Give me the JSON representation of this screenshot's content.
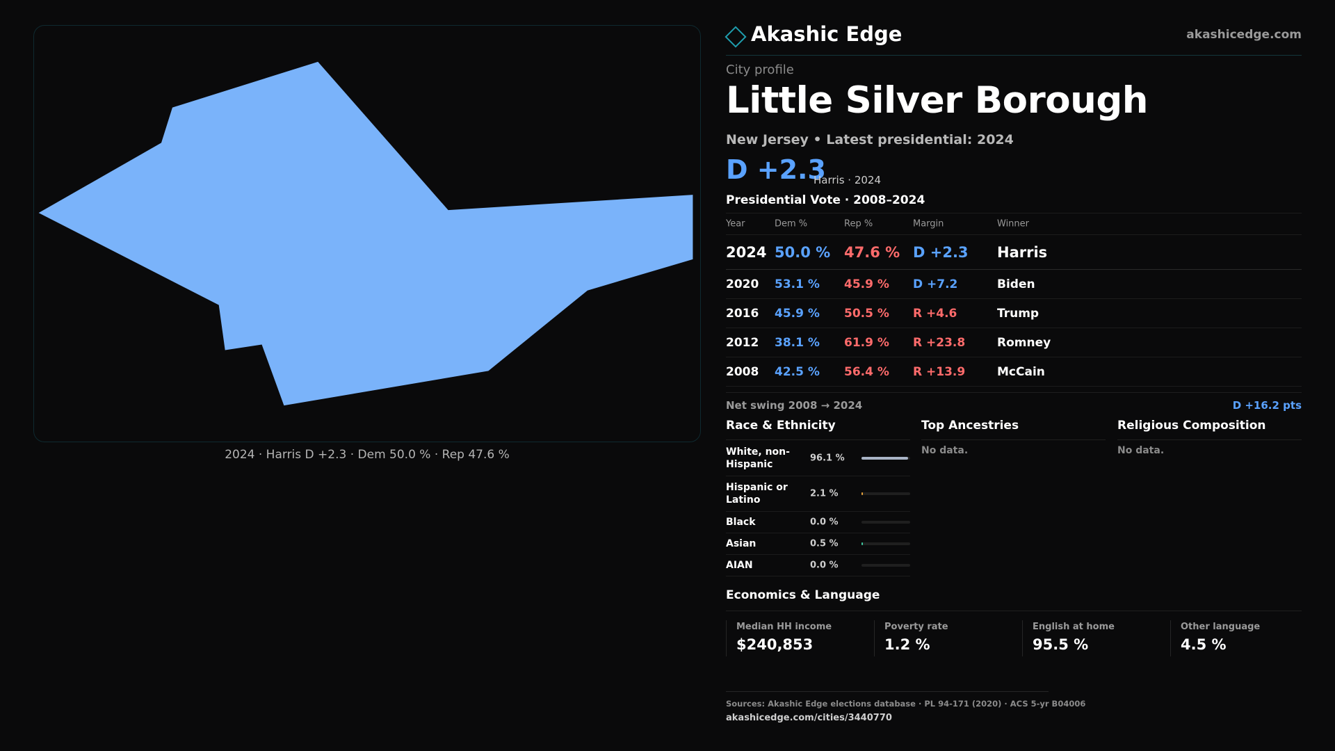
{
  "map": {
    "fill_color": "#7ab3fa",
    "caption": "2024 · Harris D +2.3 · Dem 50.0 % · Rep 47.6 %"
  },
  "brand": {
    "icon": "diamond-outline-icon",
    "name": "Akashic Edge",
    "url": "akashicedge.com"
  },
  "city": {
    "kicker": "City profile",
    "title": "Little Silver Borough",
    "subtitle": "New Jersey • Latest presidential: 2024",
    "margin": "D +2.3",
    "winner_note": "Harris · 2024"
  },
  "vote": {
    "title": "Presidential Vote · 2008–2024",
    "columns": {
      "year": "Year",
      "dem": "Dem %",
      "rep": "Rep %",
      "margin": "Margin",
      "winner": "Winner"
    },
    "rows": [
      {
        "year": "2024",
        "dem": "50.0 %",
        "rep": "47.6 %",
        "margin": "D +2.3",
        "winner": "Harris"
      },
      {
        "year": "2020",
        "dem": "53.1 %",
        "rep": "45.9 %",
        "margin": "D +7.2",
        "winner": "Biden"
      },
      {
        "year": "2016",
        "dem": "45.9 %",
        "rep": "50.5 %",
        "margin": "R +4.6",
        "winner": "Trump"
      },
      {
        "year": "2012",
        "dem": "38.1 %",
        "rep": "61.9 %",
        "margin": "R +23.8",
        "winner": "Romney"
      },
      {
        "year": "2008",
        "dem": "42.5 %",
        "rep": "56.4 %",
        "margin": "R +13.9",
        "winner": "McCain"
      }
    ],
    "swing_label": "Net swing 2008 → 2024",
    "swing_value": "D +16.2 pts"
  },
  "race": {
    "title": "Race & Ethnicity",
    "rows": [
      {
        "label": "White, non-Hispanic",
        "pct": "96.1 %",
        "value": 96.1,
        "color": "#a9b4c6"
      },
      {
        "label": "Hispanic or Latino",
        "pct": "2.1 %",
        "value": 2.1,
        "color": "#e8a33a"
      },
      {
        "label": "Black",
        "pct": "0.0 %",
        "value": 0.0,
        "color": "#7a7a7a"
      },
      {
        "label": "Asian",
        "pct": "0.5 %",
        "value": 0.5,
        "color": "#3ec9a0"
      },
      {
        "label": "AIAN",
        "pct": "0.0 %",
        "value": 0.0,
        "color": "#7a7a7a"
      }
    ]
  },
  "ancestry": {
    "title": "Top Ancestries",
    "empty": "No data."
  },
  "religion": {
    "title": "Religious Composition",
    "empty": "No data."
  },
  "economics": {
    "title": "Economics & Language",
    "cards": [
      {
        "label": "Median HH income",
        "value": "$240,853"
      },
      {
        "label": "Poverty rate",
        "value": "1.2 %"
      },
      {
        "label": "English at home",
        "value": "95.5 %"
      },
      {
        "label": "Other language",
        "value": "4.5 %"
      }
    ]
  },
  "footer": {
    "sources": "Sources: Akashic Edge elections database · PL 94-171 (2020) · ACS 5-yr B04006",
    "url": "akashicedge.com/cities/3440770"
  }
}
